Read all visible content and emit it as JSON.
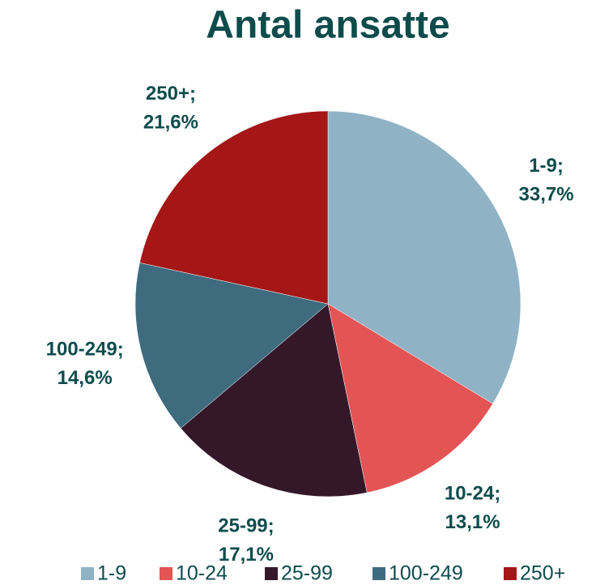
{
  "chart_data": {
    "type": "pie",
    "title": "Antal ansatte",
    "categories": [
      "1-9",
      "10-24",
      "25-99",
      "100-249",
      "250+"
    ],
    "values": [
      33.7,
      13.1,
      17.1,
      14.6,
      21.6
    ],
    "value_labels": [
      "33,7%",
      "13,1%",
      "17,1%",
      "14,6%",
      "21,6%"
    ],
    "colors": [
      "#8fb3c4",
      "#e35454",
      "#34182a",
      "#3f6b7f",
      "#a51616"
    ],
    "legend": "bottom"
  }
}
